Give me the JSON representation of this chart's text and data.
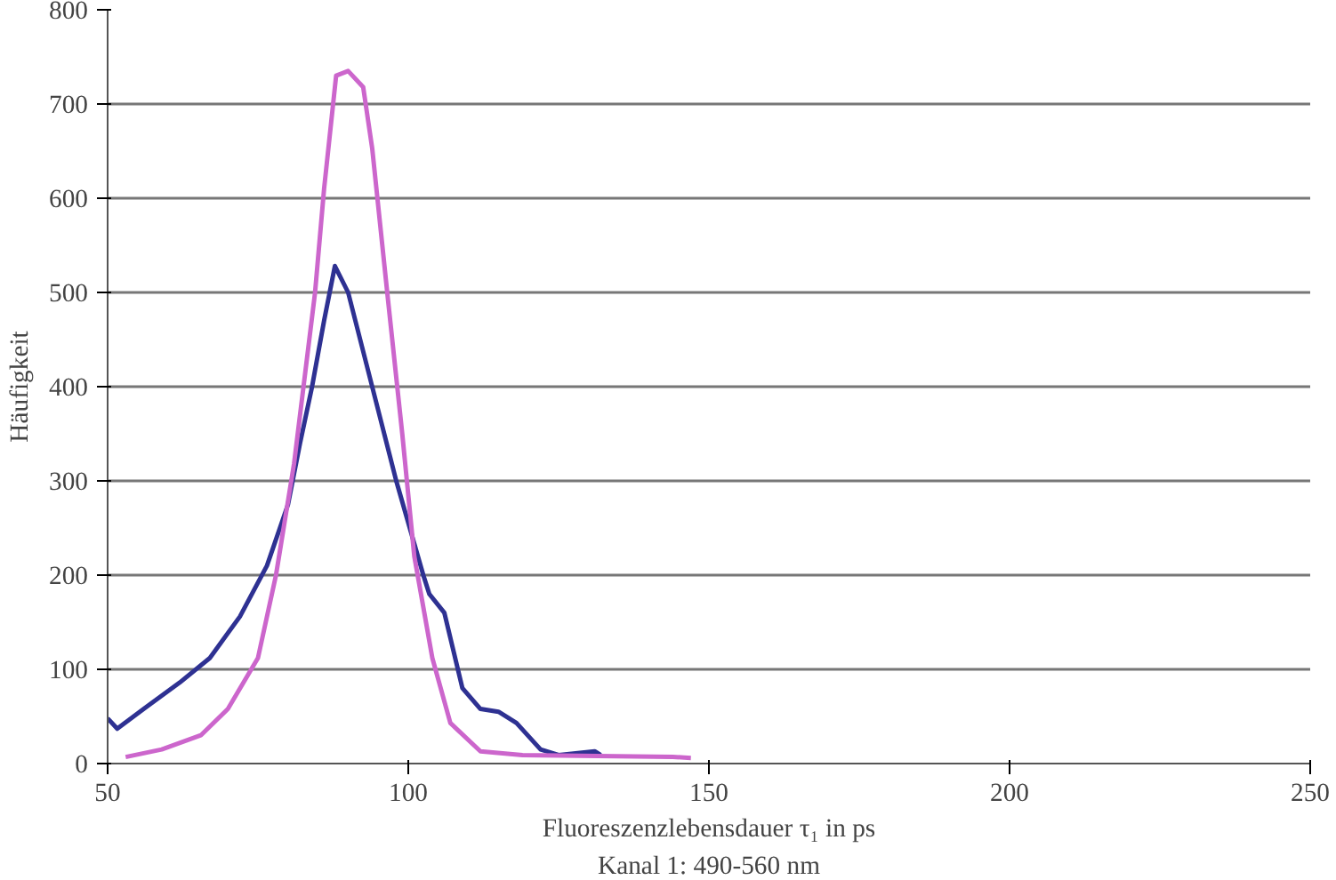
{
  "chart_data": {
    "type": "line",
    "xlabel": "Fluoreszenzlebensdauer τ₁ in ps",
    "ylabel": "Häufigkeit",
    "annotations": [
      "Kanal 1: 490-560 nm"
    ],
    "xlim": [
      50,
      250
    ],
    "ylim": [
      0,
      800
    ],
    "xticks": [
      50,
      100,
      150,
      200,
      250
    ],
    "yticks": [
      0,
      100,
      200,
      300,
      400,
      500,
      600,
      700,
      800
    ],
    "grid": "y",
    "marker": "none",
    "line_style": "solid",
    "series": [
      {
        "color": "#2e3192",
        "x": [
          50,
          51.6,
          56,
          62,
          67,
          72,
          76.5,
          80,
          82,
          84,
          86,
          87.8,
          90,
          94,
          98,
          102.5,
          103.5,
          106,
          109,
          112,
          115,
          118,
          122,
          125,
          131,
          132
        ],
        "values": [
          48,
          37,
          58,
          86,
          112,
          156,
          210,
          275,
          340,
          400,
          470,
          528,
          500,
          400,
          300,
          200,
          180,
          160,
          80,
          58,
          55,
          43,
          15,
          9,
          13,
          9
        ]
      },
      {
        "color": "#cc66cc",
        "x": [
          53,
          59,
          65.5,
          70,
          75,
          78,
          81,
          84.5,
          86,
          88,
          90,
          92.5,
          94,
          96.5,
          99,
          101,
          104,
          107,
          112,
          119,
          144,
          147
        ],
        "values": [
          7,
          15,
          30,
          58,
          112,
          200,
          318,
          500,
          610,
          730,
          735,
          718,
          653,
          500,
          350,
          220,
          112,
          43,
          13,
          9,
          7,
          6
        ]
      }
    ]
  }
}
